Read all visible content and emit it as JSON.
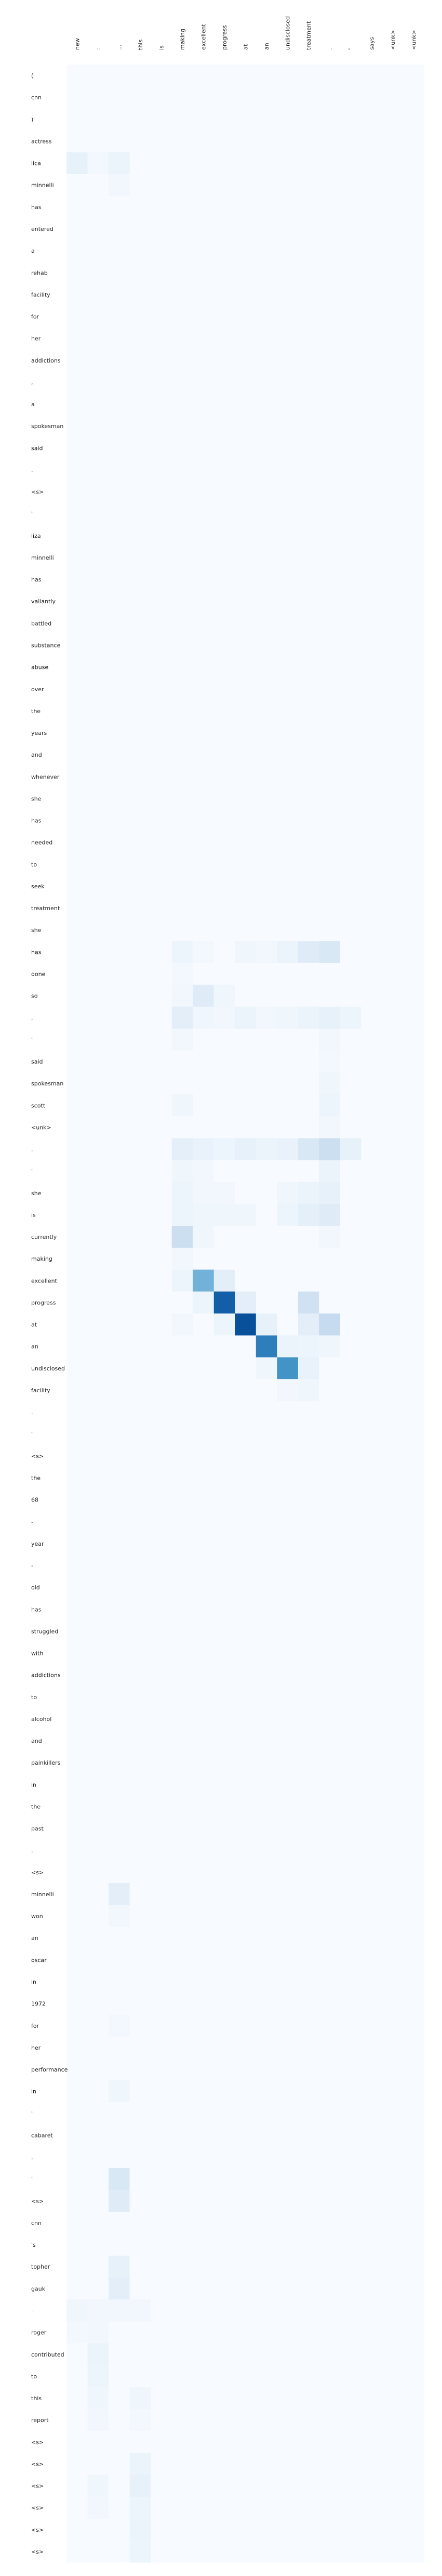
{
  "chart_data": {
    "type": "heatmap",
    "title": "",
    "xlabel": "",
    "ylabel": "",
    "colormap": "Blues",
    "value_range": [
      0,
      1
    ],
    "x_labels": [
      "new",
      ":",
      "...",
      "this",
      "is",
      "making",
      "excellent",
      "progress",
      "at",
      "an",
      "undisclosed",
      "treatment",
      ".",
      "\"",
      "says",
      "<unk>",
      "<unk>"
    ],
    "y_labels": [
      "(",
      "cnn",
      ")",
      "actress",
      "lica",
      "minnelli",
      "has",
      "entered",
      "a",
      "rehab",
      "facility",
      "for",
      "her",
      "addictions",
      ",",
      "a",
      "spokesman",
      "said",
      ".",
      "<s>",
      "\"",
      "liza",
      "minnelli",
      "has",
      "valiantly",
      "battled",
      "substance",
      "abuse",
      "over",
      "the",
      "years",
      "and",
      "whenever",
      "she",
      "has",
      "needed",
      "to",
      "seek",
      "treatment",
      "she",
      "has",
      "done",
      "so",
      ",",
      "\"",
      "said",
      "spokesman",
      "scott",
      "<unk>",
      ".",
      "\"",
      "she",
      "is",
      "currently",
      "making",
      "excellent",
      "progress",
      "at",
      "an",
      "undisclosed",
      "facility",
      ".",
      "\"",
      "<s>",
      "the",
      "68",
      "-",
      "year",
      "-",
      "old",
      "has",
      "struggled",
      "with",
      "addictions",
      "to",
      "alcohol",
      "and",
      "painkillers",
      "in",
      "the",
      "past",
      ".",
      "<s>",
      "minnelli",
      "won",
      "an",
      "oscar",
      "in",
      "1972",
      "for",
      "her",
      "performance",
      "in",
      "\"",
      "cabaret",
      ".",
      "\"",
      "<s>",
      "cnn",
      "'s",
      "topher",
      "gauk",
      "-",
      "roger",
      "contributed",
      "to",
      "this",
      "report",
      "<s>",
      "<s>",
      "<s>",
      "<s>",
      "<s>",
      "<s>"
    ],
    "matrix_sparse": [
      [
        4,
        0,
        0.08
      ],
      [
        4,
        2,
        0.06
      ],
      [
        4,
        1,
        0.02
      ],
      [
        5,
        2,
        0.03
      ],
      [
        40,
        5,
        0.05
      ],
      [
        40,
        6,
        0.02
      ],
      [
        40,
        8,
        0.04
      ],
      [
        40,
        10,
        0.06
      ],
      [
        40,
        11,
        0.12
      ],
      [
        40,
        12,
        0.15
      ],
      [
        40,
        9,
        0.03
      ],
      [
        41,
        5,
        0.02
      ],
      [
        42,
        6,
        0.12
      ],
      [
        42,
        5,
        0.03
      ],
      [
        42,
        7,
        0.04
      ],
      [
        43,
        5,
        0.1
      ],
      [
        43,
        6,
        0.04
      ],
      [
        43,
        7,
        0.03
      ],
      [
        43,
        8,
        0.06
      ],
      [
        43,
        9,
        0.03
      ],
      [
        43,
        10,
        0.04
      ],
      [
        43,
        11,
        0.06
      ],
      [
        43,
        12,
        0.08
      ],
      [
        43,
        13,
        0.05
      ],
      [
        44,
        5,
        0.03
      ],
      [
        44,
        12,
        0.03
      ],
      [
        45,
        12,
        0.02
      ],
      [
        46,
        12,
        0.04
      ],
      [
        47,
        5,
        0.04
      ],
      [
        47,
        12,
        0.05
      ],
      [
        48,
        12,
        0.03
      ],
      [
        49,
        5,
        0.09
      ],
      [
        49,
        6,
        0.07
      ],
      [
        49,
        7,
        0.05
      ],
      [
        49,
        8,
        0.08
      ],
      [
        49,
        9,
        0.06
      ],
      [
        49,
        10,
        0.07
      ],
      [
        49,
        11,
        0.15
      ],
      [
        49,
        12,
        0.22
      ],
      [
        49,
        13,
        0.08
      ],
      [
        50,
        5,
        0.04
      ],
      [
        50,
        6,
        0.03
      ],
      [
        50,
        12,
        0.06
      ],
      [
        51,
        5,
        0.05
      ],
      [
        51,
        6,
        0.03
      ],
      [
        51,
        7,
        0.03
      ],
      [
        51,
        10,
        0.04
      ],
      [
        51,
        11,
        0.06
      ],
      [
        51,
        12,
        0.08
      ],
      [
        52,
        5,
        0.05
      ],
      [
        52,
        6,
        0.04
      ],
      [
        52,
        7,
        0.04
      ],
      [
        52,
        8,
        0.04
      ],
      [
        52,
        10,
        0.05
      ],
      [
        52,
        11,
        0.09
      ],
      [
        52,
        12,
        0.12
      ],
      [
        53,
        5,
        0.22
      ],
      [
        53,
        6,
        0.04
      ],
      [
        53,
        12,
        0.03
      ],
      [
        54,
        5,
        0.03
      ],
      [
        55,
        6,
        0.48
      ],
      [
        55,
        7,
        0.1
      ],
      [
        55,
        5,
        0.05
      ],
      [
        56,
        7,
        0.82
      ],
      [
        56,
        8,
        0.1
      ],
      [
        56,
        6,
        0.05
      ],
      [
        56,
        11,
        0.2
      ],
      [
        57,
        8,
        0.88
      ],
      [
        57,
        9,
        0.08
      ],
      [
        57,
        7,
        0.05
      ],
      [
        57,
        5,
        0.03
      ],
      [
        57,
        11,
        0.1
      ],
      [
        57,
        12,
        0.25
      ],
      [
        58,
        9,
        0.7
      ],
      [
        58,
        10,
        0.06
      ],
      [
        58,
        11,
        0.05
      ],
      [
        58,
        12,
        0.04
      ],
      [
        59,
        10,
        0.62
      ],
      [
        59,
        11,
        0.07
      ],
      [
        59,
        9,
        0.04
      ],
      [
        60,
        11,
        0.04
      ],
      [
        60,
        10,
        0.03
      ],
      [
        83,
        2,
        0.1
      ],
      [
        84,
        2,
        0.03
      ],
      [
        89,
        2,
        0.02
      ],
      [
        92,
        2,
        0.04
      ],
      [
        96,
        2,
        0.15
      ],
      [
        97,
        2,
        0.12
      ],
      [
        100,
        2,
        0.08
      ],
      [
        101,
        2,
        0.1
      ],
      [
        102,
        0,
        0.04
      ],
      [
        102,
        1,
        0.03
      ],
      [
        102,
        2,
        0.03
      ],
      [
        102,
        3,
        0.03
      ],
      [
        103,
        0,
        0.02
      ],
      [
        103,
        1,
        0.03
      ],
      [
        104,
        1,
        0.06
      ],
      [
        105,
        1,
        0.05
      ],
      [
        106,
        1,
        0.04
      ],
      [
        106,
        3,
        0.04
      ],
      [
        107,
        1,
        0.03
      ],
      [
        107,
        3,
        0.02
      ],
      [
        109,
        3,
        0.06
      ],
      [
        110,
        1,
        0.04
      ],
      [
        110,
        3,
        0.08
      ],
      [
        111,
        1,
        0.03
      ],
      [
        111,
        3,
        0.05
      ],
      [
        112,
        3,
        0.06
      ],
      [
        113,
        3,
        0.05
      ],
      [
        114,
        3,
        0.04
      ],
      [
        115,
        3,
        0.06
      ]
    ],
    "grid": false,
    "legend": "none"
  }
}
